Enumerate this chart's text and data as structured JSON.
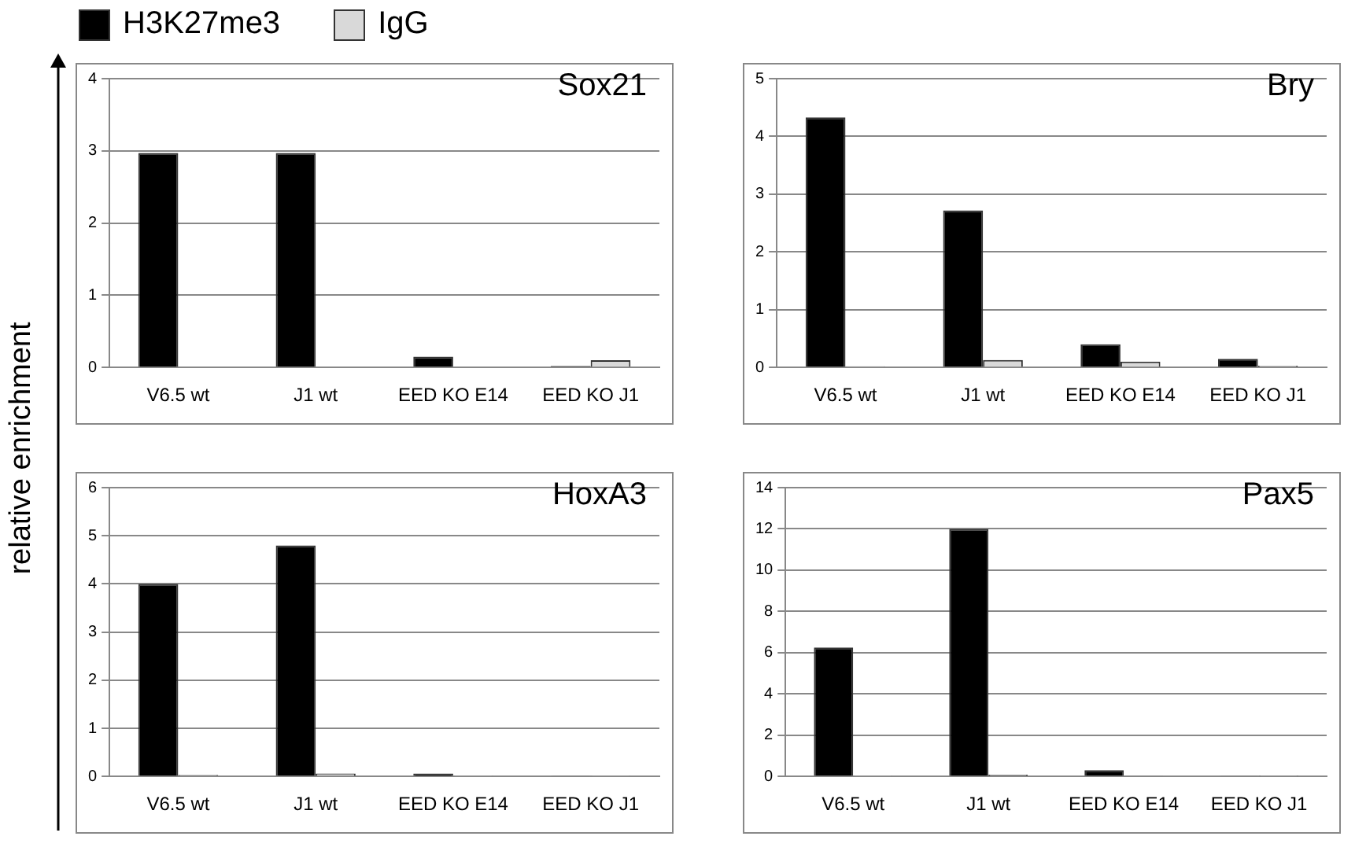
{
  "chart_data": [
    {
      "type": "bar",
      "title": "Sox21",
      "ylabel": "relative enrichment",
      "categories": [
        "V6.5 wt",
        "J1 wt",
        "EED KO E14",
        "EED KO J1"
      ],
      "series": [
        {
          "name": "H3K27me3",
          "color": "#000000",
          "values": [
            2.97,
            2.97,
            0.15,
            0.02
          ]
        },
        {
          "name": "IgG",
          "color": "#d9d9d9",
          "values": [
            0.01,
            0.01,
            0.01,
            0.1
          ]
        }
      ],
      "ylim": [
        0,
        4
      ],
      "yticks": [
        0,
        1,
        2,
        3,
        4
      ],
      "grid": "y",
      "legend": "top left"
    },
    {
      "type": "bar",
      "title": "Bry",
      "categories": [
        "V6.5 wt",
        "J1 wt",
        "EED KO E14",
        "EED KO J1"
      ],
      "series": [
        {
          "color": "#000000",
          "values": [
            4.33,
            2.72,
            0.4,
            0.15
          ]
        },
        {
          "color": "#d9d9d9",
          "values": [
            0.02,
            0.13,
            0.1,
            0.03
          ]
        }
      ],
      "ylim": [
        0,
        5
      ],
      "yticks": [
        0,
        1,
        2,
        3,
        4,
        5
      ],
      "grid": "y"
    },
    {
      "type": "bar",
      "title": "HoxA3",
      "categories": [
        "V6.5 wt",
        "J1 wt",
        "EED KO E14",
        "EED KO J1"
      ],
      "series": [
        {
          "color": "#000000",
          "values": [
            4.0,
            4.8,
            0.06,
            0.01
          ]
        },
        {
          "color": "#d9d9d9",
          "values": [
            0.03,
            0.06,
            0.01,
            0.01
          ]
        }
      ],
      "ylim": [
        0,
        6
      ],
      "yticks": [
        0,
        1,
        2,
        3,
        4,
        5,
        6
      ],
      "grid": "y"
    },
    {
      "type": "bar",
      "title": "Pax5",
      "categories": [
        "V6.5 wt",
        "J1 wt",
        "EED KO E14",
        "EED KO J1"
      ],
      "series": [
        {
          "color": "#000000",
          "values": [
            6.25,
            12.0,
            0.3,
            0.05
          ]
        },
        {
          "color": "#d9d9d9",
          "values": [
            0.05,
            0.08,
            0.03,
            0.02
          ]
        }
      ],
      "ylim": [
        0,
        14
      ],
      "yticks": [
        0,
        2,
        4,
        6,
        8,
        10,
        12,
        14
      ],
      "grid": "y"
    }
  ]
}
